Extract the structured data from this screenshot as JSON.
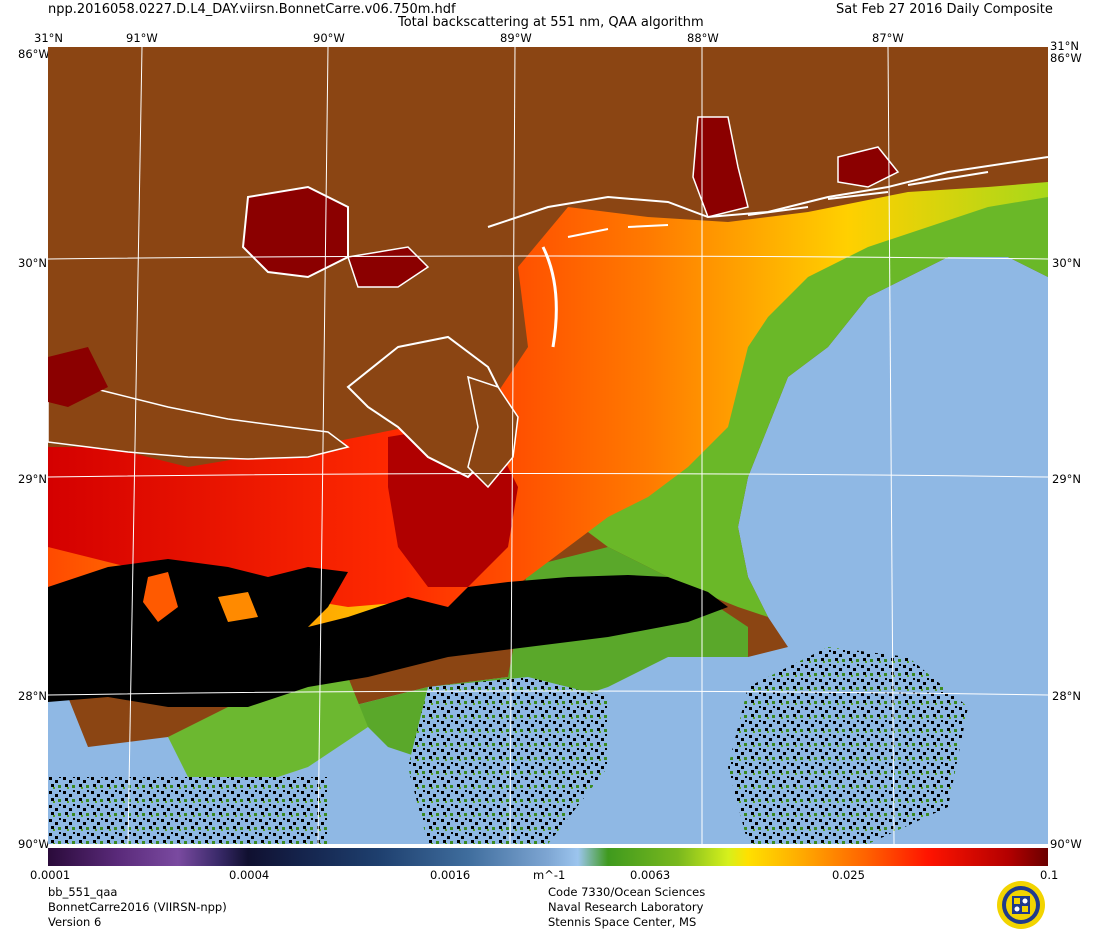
{
  "header": {
    "filename": "npp.2016058.0227.D.L4_DAY.viirsn.BonnetCarre.v06.750m.hdf",
    "title": "Total backscattering at 551 nm, QAA algorithm",
    "composite": "Sat Feb 27 2016 Daily Composite"
  },
  "map": {
    "longitude_labels": [
      "91°W",
      "90°W",
      "89°W",
      "88°W",
      "87°W"
    ],
    "latitude_labels": [
      "31°N",
      "30°N",
      "29°N",
      "28°N"
    ],
    "corner_labels": [
      "31°N",
      "31°N",
      "86°W",
      "86°W",
      "90°W",
      "90°W"
    ],
    "colors": {
      "land": "#8B4513",
      "no_data": "#000000",
      "clear_water": "#8fb8e4",
      "coastline": "#ffffff",
      "grid": "#ffffff"
    }
  },
  "colorbar": {
    "ticks": [
      "0.0001",
      "0.0004",
      "0.0016",
      "0.0063",
      "0.025",
      "0.1"
    ],
    "unit": "m^-1",
    "scale": "log"
  },
  "footer": {
    "product": "bb_551_qaa",
    "dataset": "BonnetCarre2016 (VIIRSN-npp)",
    "version": "Version 6",
    "org_line1": "Code 7330/Ocean Sciences",
    "org_line2": "Naval Research Laboratory",
    "org_line3": "Stennis Space Center, MS"
  }
}
